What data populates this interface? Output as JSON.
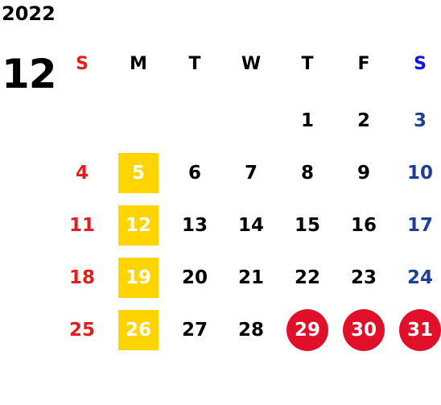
{
  "calendar": {
    "year": "2022",
    "month": "12",
    "weekday_headers": [
      "S",
      "M",
      "T",
      "W",
      "T",
      "F",
      "S"
    ],
    "weeks": [
      [
        "",
        "",
        "",
        "",
        "1",
        "2",
        "3"
      ],
      [
        "4",
        "5",
        "6",
        "7",
        "8",
        "9",
        "10"
      ],
      [
        "11",
        "12",
        "13",
        "14",
        "15",
        "16",
        "17"
      ],
      [
        "18",
        "19",
        "20",
        "21",
        "22",
        "23",
        "24"
      ],
      [
        "25",
        "26",
        "27",
        "28",
        "29",
        "30",
        "31"
      ]
    ],
    "highlighted_yellow": [
      "5",
      "12",
      "19",
      "26"
    ],
    "highlighted_red": [
      "29",
      "30",
      "31"
    ]
  },
  "colors": {
    "text": "#000000",
    "sunday": "#e02020",
    "saturday": "#1f3f94",
    "saturday_header": "#1010e0",
    "highlight_yellow": "#ffd400",
    "highlight_red": "#e0102a",
    "background": "#ffffff"
  }
}
